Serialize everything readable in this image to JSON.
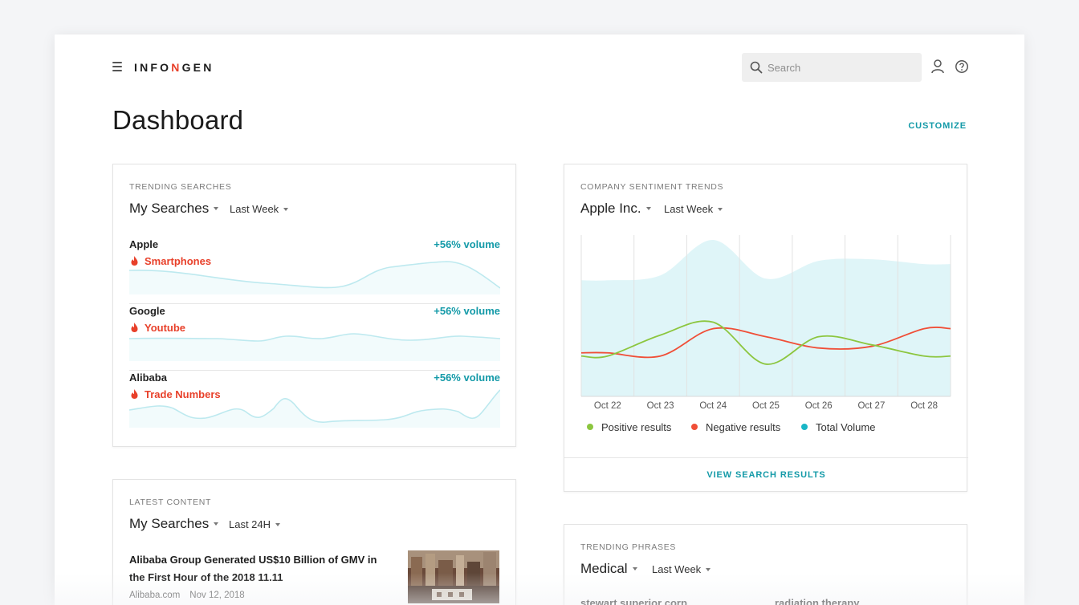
{
  "header": {
    "logo_prefix": "INFO",
    "logo_highlight": "N",
    "logo_suffix": "GEN",
    "search_placeholder": "Search"
  },
  "page": {
    "title": "Dashboard",
    "customize_label": "CUSTOMIZE"
  },
  "trending_searches": {
    "label": "TRENDING SEARCHES",
    "scope": "My Searches",
    "period": "Last Week",
    "items": [
      {
        "name": "Apple",
        "tag": "Smartphones",
        "volume": "+56% volume"
      },
      {
        "name": "Google",
        "tag": "Youtube",
        "volume": "+56% volume"
      },
      {
        "name": "Alibaba",
        "tag": "Trade Numbers",
        "volume": "+56% volume"
      }
    ]
  },
  "sentiment": {
    "label": "COMPANY SENTIMENT TRENDS",
    "company": "Apple Inc.",
    "period": "Last Week",
    "view_results_label": "VIEW SEARCH RESULTS"
  },
  "latest_content": {
    "label": "LATEST CONTENT",
    "scope": "My Searches",
    "period": "Last 24H",
    "article": {
      "title": "Alibaba Group Generated US$10 Billion of GMV in the First Hour of the 2018 11.11",
      "source": "Alibaba.com",
      "date": "Nov 12, 2018"
    }
  },
  "trending_phrases": {
    "label": "TRENDING PHRASES",
    "category": "Medical",
    "period": "Last Week",
    "items": [
      "stewart superior corp",
      "radiation therapy"
    ]
  },
  "colors": {
    "accent": "#149aa8",
    "brand_red": "#e8402a",
    "positive": "#8cc63f",
    "negative": "#f04e37",
    "volume": "#19b6c6",
    "volume_fill": "#dff5f8"
  },
  "icons": [
    "menu-icon",
    "search-icon",
    "user-icon",
    "help-icon",
    "flame-icon",
    "caret-down-icon"
  ],
  "chart_data": {
    "type": "line",
    "title": "",
    "categories": [
      "Oct 22",
      "Oct 23",
      "Oct 24",
      "Oct 25",
      "Oct 26",
      "Oct 27",
      "Oct 28"
    ],
    "ylim": [
      0,
      100
    ],
    "grid": true,
    "legend": "bottom",
    "series": [
      {
        "name": "Positive results",
        "values": [
          25,
          38,
          46,
          20,
          37,
          32,
          25
        ]
      },
      {
        "name": "Negative results",
        "values": [
          27,
          25,
          42,
          37,
          30,
          31,
          42
        ]
      },
      {
        "name": "Total Volume",
        "values": [
          72,
          75,
          97,
          73,
          84,
          85,
          82
        ]
      }
    ]
  }
}
